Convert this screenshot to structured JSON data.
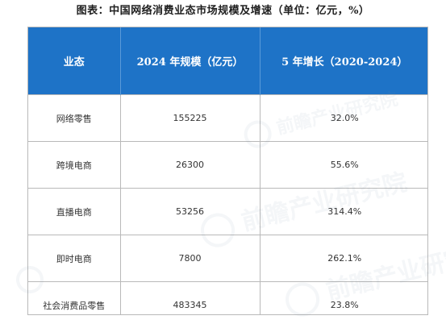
{
  "title": "图表：中国网络消费业态市场规模及增速（单位：亿元，%）",
  "table": {
    "headers": [
      "业态",
      "2024 年规模（亿元）",
      "5 年增长（2020-2024）"
    ],
    "rows": [
      {
        "category": "网络零售",
        "scale": "155225",
        "growth": "32.0%"
      },
      {
        "category": "跨境电商",
        "scale": "26300",
        "growth": "55.6%"
      },
      {
        "category": "直播电商",
        "scale": "53256",
        "growth": "314.4%"
      },
      {
        "category": "即时电商",
        "scale": "7800",
        "growth": "262.1%"
      },
      {
        "category": "社会消费品零售",
        "scale": "483345",
        "growth": "23.8%"
      }
    ]
  },
  "watermark": {
    "text": "前瞻产业研究院",
    "color": "#8ca0b4"
  },
  "colors": {
    "header_bg": "#1e73c7",
    "header_text": "#ffffff",
    "border": "#b9b9b9"
  }
}
